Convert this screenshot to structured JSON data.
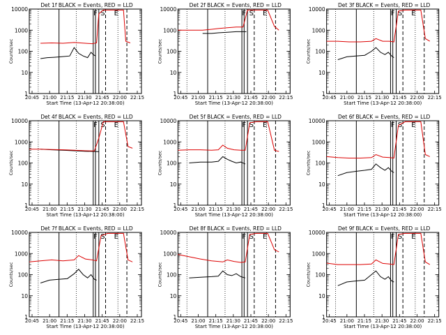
{
  "chart_data": [
    {
      "type": "line",
      "title": "Det 1f BLACK = Events, RED = LLD",
      "xlabel": "Start Time (13-Apr-12 20:38:00)",
      "ylabel": "Counts/sec",
      "xticks": [
        "20:45",
        "21:00",
        "21:15",
        "21:30",
        "21:45",
        "22:00",
        "22:15"
      ],
      "yticks": [
        "1",
        "10",
        "100",
        "1000",
        "10000"
      ],
      "ylim": [
        1,
        10000
      ],
      "log_y": true,
      "markers": [
        "F",
        "S",
        "E"
      ],
      "series": [
        {
          "color": "#000000",
          "x": [
            0.1,
            0.16,
            0.22,
            0.28,
            0.36,
            0.4,
            0.44,
            0.48,
            0.52,
            0.55,
            0.57,
            0.59
          ],
          "values": [
            45,
            50,
            52,
            55,
            60,
            150,
            80,
            60,
            50,
            90,
            70,
            60
          ]
        },
        {
          "color": "#dd0000",
          "x": [
            0.1,
            0.2,
            0.3,
            0.4,
            0.5,
            0.56,
            0.6,
            0.62,
            0.66,
            0.7,
            0.8,
            0.84,
            0.86,
            0.9
          ],
          "values": [
            240,
            250,
            240,
            260,
            240,
            230,
            250,
            6000,
            9000,
            9000,
            9000,
            9000,
            300,
            250
          ]
        }
      ]
    },
    {
      "type": "line",
      "title": "Det 2f BLACK = Events, RED = LLD",
      "xlabel": "Start Time (13-Apr-12 20:38:00)",
      "ylabel": "Counts/sec",
      "xticks": [
        "20:45",
        "21:00",
        "21:15",
        "21:30",
        "21:45",
        "22:00",
        "22:15"
      ],
      "yticks": [
        "1",
        "10",
        "100",
        "1000",
        "10000"
      ],
      "ylim": [
        1,
        10000
      ],
      "log_y": true,
      "markers": [
        "F",
        "S",
        "E"
      ],
      "series": [
        {
          "color": "#000000",
          "x": [
            0.22,
            0.3,
            0.36,
            0.44,
            0.52,
            0.58,
            0.61
          ],
          "values": [
            700,
            700,
            750,
            800,
            850,
            850,
            850
          ]
        },
        {
          "color": "#dd0000",
          "x": [
            0.0,
            0.1,
            0.22,
            0.3,
            0.36,
            0.44,
            0.52,
            0.58,
            0.62,
            0.66,
            0.7,
            0.8,
            0.86,
            0.9
          ],
          "values": [
            1000,
            1000,
            1000,
            1100,
            1200,
            1300,
            1400,
            1400,
            9000,
            9000,
            9000,
            9000,
            1500,
            1000
          ]
        }
      ]
    },
    {
      "type": "line",
      "title": "Det 3f BLACK = Events, RED = LLD",
      "xlabel": "Start Time (13-Apr-12 20:38:00)",
      "ylabel": "Counts/sec",
      "xticks": [
        "20:45",
        "21:00",
        "21:15",
        "21:30",
        "21:45",
        "22:00",
        "22:15"
      ],
      "yticks": [
        "1",
        "10",
        "100",
        "1000",
        "10000"
      ],
      "ylim": [
        1,
        10000
      ],
      "log_y": true,
      "markers": [
        "F",
        "S",
        "E"
      ],
      "series": [
        {
          "color": "#000000",
          "x": [
            0.1,
            0.18,
            0.26,
            0.34,
            0.4,
            0.44,
            0.48,
            0.52,
            0.55,
            0.58,
            0.6
          ],
          "values": [
            40,
            55,
            60,
            65,
            100,
            150,
            90,
            70,
            90,
            60,
            50
          ]
        },
        {
          "color": "#dd0000",
          "x": [
            0.0,
            0.1,
            0.2,
            0.3,
            0.4,
            0.44,
            0.5,
            0.56,
            0.6,
            0.64,
            0.7,
            0.8,
            0.84,
            0.88,
            0.92
          ],
          "values": [
            300,
            300,
            280,
            280,
            300,
            400,
            300,
            300,
            280,
            8000,
            9000,
            9000,
            9000,
            400,
            300
          ]
        }
      ]
    },
    {
      "type": "line",
      "title": "Det 4f BLACK = Events, RED = LLD",
      "xlabel": "Start Time (13-Apr-12 20:38:00)",
      "ylabel": "Counts/sec",
      "xticks": [
        "20:45",
        "21:00",
        "21:15",
        "21:30",
        "21:45",
        "22:00",
        "22:15"
      ],
      "yticks": [
        "1",
        "10",
        "100",
        "1000",
        "10000"
      ],
      "ylim": [
        1,
        10000
      ],
      "log_y": true,
      "markers": [
        "F",
        "S",
        "E"
      ],
      "series": [
        {
          "color": "#000000",
          "x": [
            0.1,
            0.2,
            0.3,
            0.4,
            0.5,
            0.58,
            0.62
          ],
          "values": [
            450,
            420,
            400,
            380,
            360,
            350,
            340
          ]
        },
        {
          "color": "#dd0000",
          "x": [
            0.0,
            0.1,
            0.2,
            0.3,
            0.4,
            0.5,
            0.58,
            0.62,
            0.66,
            0.7,
            0.8,
            0.84,
            0.88,
            0.92
          ],
          "values": [
            450,
            450,
            430,
            420,
            400,
            380,
            370,
            1500,
            9000,
            9000,
            9000,
            9000,
            600,
            500
          ]
        }
      ]
    },
    {
      "type": "line",
      "title": "Det 5f BLACK = Events, RED = LLD",
      "xlabel": "Start Time (13-Apr-12 20:38:00)",
      "ylabel": "Counts/sec",
      "xticks": [
        "20:45",
        "21:00",
        "21:15",
        "21:30",
        "21:45",
        "22:00",
        "22:15"
      ],
      "yticks": [
        "1",
        "10",
        "100",
        "1000",
        "10000"
      ],
      "ylim": [
        1,
        10000
      ],
      "log_y": true,
      "markers": [
        "F",
        "S",
        "E"
      ],
      "series": [
        {
          "color": "#000000",
          "x": [
            0.1,
            0.2,
            0.3,
            0.36,
            0.4,
            0.44,
            0.48,
            0.52,
            0.56,
            0.6
          ],
          "values": [
            100,
            110,
            110,
            120,
            200,
            150,
            120,
            100,
            110,
            90
          ]
        },
        {
          "color": "#dd0000",
          "x": [
            0.0,
            0.1,
            0.2,
            0.3,
            0.36,
            0.4,
            0.44,
            0.5,
            0.56,
            0.6,
            0.64,
            0.7,
            0.8,
            0.86,
            0.9
          ],
          "values": [
            400,
            420,
            420,
            400,
            420,
            700,
            500,
            420,
            400,
            400,
            8000,
            9000,
            9000,
            400,
            350
          ]
        }
      ]
    },
    {
      "type": "line",
      "title": "Det 6f BLACK = Events, RED = LLD",
      "xlabel": "Start Time (13-Apr-12 20:38:00)",
      "ylabel": "Counts/sec",
      "xticks": [
        "20:45",
        "21:00",
        "21:15",
        "21:30",
        "21:45",
        "22:00",
        "22:15"
      ],
      "yticks": [
        "1",
        "10",
        "100",
        "1000",
        "10000"
      ],
      "ylim": [
        1,
        10000
      ],
      "log_y": true,
      "markers": [
        "F",
        "S",
        "E"
      ],
      "series": [
        {
          "color": "#000000",
          "x": [
            0.1,
            0.18,
            0.26,
            0.34,
            0.4,
            0.44,
            0.48,
            0.52,
            0.55,
            0.58,
            0.6
          ],
          "values": [
            25,
            35,
            40,
            45,
            50,
            90,
            60,
            45,
            60,
            40,
            35
          ]
        },
        {
          "color": "#dd0000",
          "x": [
            0.0,
            0.1,
            0.2,
            0.3,
            0.4,
            0.44,
            0.5,
            0.56,
            0.6,
            0.64,
            0.7,
            0.8,
            0.84,
            0.88,
            0.92
          ],
          "values": [
            200,
            180,
            170,
            170,
            180,
            250,
            190,
            180,
            170,
            6000,
            9000,
            9000,
            9000,
            250,
            200
          ]
        }
      ]
    },
    {
      "type": "line",
      "title": "Det 7f BLACK = Events, RED = LLD",
      "xlabel": "Start Time (13-Apr-12 20:38:00)",
      "ylabel": "Counts/sec",
      "xticks": [
        "20:45",
        "21:00",
        "21:15",
        "21:30",
        "21:45",
        "22:00",
        "22:15"
      ],
      "yticks": [
        "1",
        "10",
        "100",
        "1000",
        "10000"
      ],
      "ylim": [
        1,
        10000
      ],
      "log_y": true,
      "markers": [
        "F",
        "S",
        "E"
      ],
      "series": [
        {
          "color": "#000000",
          "x": [
            0.1,
            0.18,
            0.26,
            0.34,
            0.4,
            0.44,
            0.48,
            0.52,
            0.55,
            0.58,
            0.6
          ],
          "values": [
            40,
            55,
            60,
            65,
            110,
            180,
            100,
            70,
            100,
            60,
            55
          ]
        },
        {
          "color": "#dd0000",
          "x": [
            0.0,
            0.1,
            0.2,
            0.3,
            0.4,
            0.44,
            0.5,
            0.56,
            0.6,
            0.64,
            0.7,
            0.8,
            0.84,
            0.88,
            0.92
          ],
          "values": [
            400,
            450,
            500,
            450,
            500,
            800,
            550,
            500,
            450,
            7000,
            9000,
            9000,
            9000,
            500,
            400
          ]
        }
      ]
    },
    {
      "type": "line",
      "title": "Det 8f BLACK = Events, RED = LLD",
      "xlabel": "Start Time (13-Apr-12 20:38:00)",
      "ylabel": "Counts/sec",
      "xticks": [
        "20:45",
        "21:00",
        "21:15",
        "21:30",
        "21:45",
        "22:00",
        "22:15"
      ],
      "yticks": [
        "1",
        "10",
        "100",
        "1000",
        "10000"
      ],
      "ylim": [
        1,
        10000
      ],
      "log_y": true,
      "markers": [
        "F",
        "S",
        "E"
      ],
      "series": [
        {
          "color": "#000000",
          "x": [
            0.1,
            0.2,
            0.3,
            0.36,
            0.4,
            0.44,
            0.48,
            0.52,
            0.56,
            0.6
          ],
          "values": [
            70,
            75,
            80,
            85,
            150,
            100,
            90,
            110,
            80,
            70
          ]
        },
        {
          "color": "#dd0000",
          "x": [
            0.0,
            0.1,
            0.2,
            0.3,
            0.4,
            0.44,
            0.5,
            0.56,
            0.6,
            0.64,
            0.7,
            0.8,
            0.86,
            0.9
          ],
          "values": [
            900,
            700,
            550,
            450,
            400,
            500,
            420,
            380,
            400,
            8000,
            9000,
            9000,
            1500,
            1200
          ]
        }
      ]
    },
    {
      "type": "line",
      "title": "Det 9f BLACK = Events, RED = LLD",
      "xlabel": "Start Time (13-Apr-12 20:38:00)",
      "ylabel": "Counts/sec",
      "xticks": [
        "20:45",
        "21:00",
        "21:15",
        "21:30",
        "21:45",
        "22:00",
        "22:15"
      ],
      "yticks": [
        "1",
        "10",
        "100",
        "1000",
        "10000"
      ],
      "ylim": [
        1,
        10000
      ],
      "log_y": true,
      "markers": [
        "F",
        "S",
        "E"
      ],
      "series": [
        {
          "color": "#000000",
          "x": [
            0.1,
            0.18,
            0.26,
            0.34,
            0.4,
            0.44,
            0.48,
            0.52,
            0.55,
            0.58,
            0.6
          ],
          "values": [
            30,
            45,
            50,
            55,
            100,
            150,
            80,
            60,
            80,
            50,
            45
          ]
        },
        {
          "color": "#dd0000",
          "x": [
            0.0,
            0.1,
            0.2,
            0.3,
            0.4,
            0.44,
            0.5,
            0.56,
            0.6,
            0.64,
            0.7,
            0.8,
            0.84,
            0.88,
            0.92
          ],
          "values": [
            350,
            300,
            300,
            300,
            320,
            500,
            340,
            320,
            300,
            8000,
            9000,
            9000,
            9000,
            400,
            300
          ]
        }
      ]
    }
  ]
}
